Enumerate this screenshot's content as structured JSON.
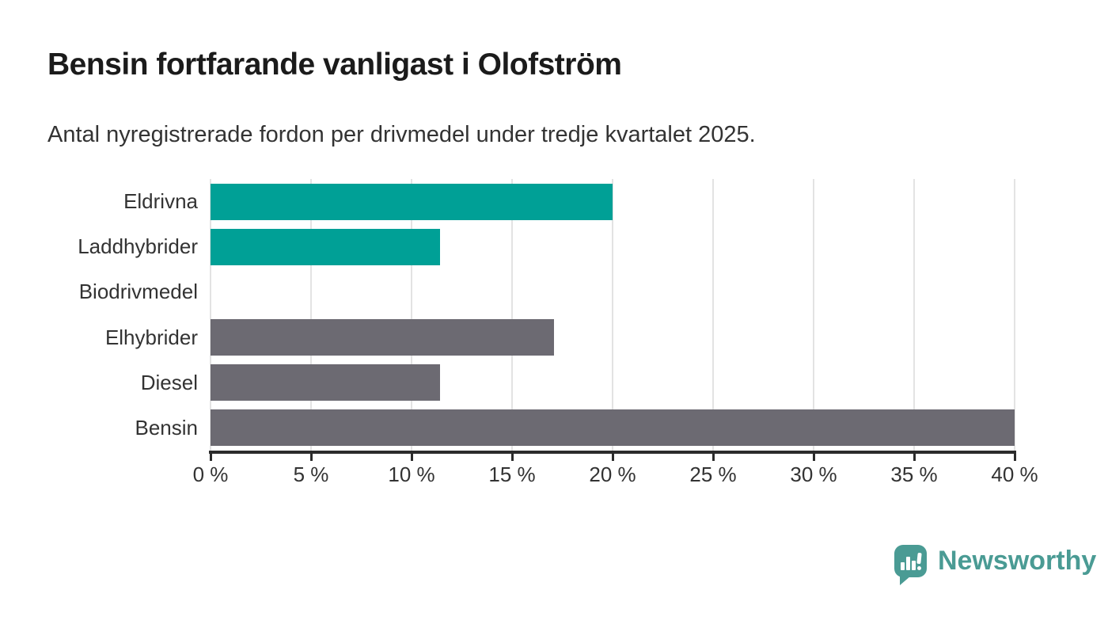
{
  "title": "Bensin fortfarande vanligast i Olofström",
  "subtitle": "Antal nyregistrerade fordon per drivmedel under tredje kvartalet 2025.",
  "brand": {
    "name": "Newsworthy",
    "color": "#4a9b94",
    "icon": "speech-bubble-bar-chart-icon"
  },
  "style": {
    "teal": "#00a096",
    "gray": "#6c6a72",
    "grid_color": "#e3e3e3",
    "axis_color": "#2b2b2b",
    "text_color": "#333333",
    "title_color": "#1b1b1b",
    "background": "#ffffff"
  },
  "chart_data": {
    "type": "bar",
    "orientation": "horizontal",
    "title": "Bensin fortfarande vanligast i Olofström",
    "subtitle": "Antal nyregistrerade fordon per drivmedel under tredje kvartalet 2025.",
    "categories": [
      "Eldrivna",
      "Laddhybrider",
      "Biodrivmedel",
      "Elhybrider",
      "Diesel",
      "Bensin"
    ],
    "values": [
      20,
      11.4,
      0,
      17.1,
      11.4,
      40
    ],
    "unit": "%",
    "bar_colors": [
      "#00a096",
      "#00a096",
      "#6c6a72",
      "#6c6a72",
      "#6c6a72",
      "#6c6a72"
    ],
    "xlim": [
      0,
      40
    ],
    "x_ticks": [
      {
        "value": 0,
        "label": "0 %"
      },
      {
        "value": 5,
        "label": "5 %"
      },
      {
        "value": 10,
        "label": "10 %"
      },
      {
        "value": 15,
        "label": "15 %"
      },
      {
        "value": 20,
        "label": "20 %"
      },
      {
        "value": 25,
        "label": "25 %"
      },
      {
        "value": 30,
        "label": "30 %"
      },
      {
        "value": 35,
        "label": "35 %"
      },
      {
        "value": 40,
        "label": "40 %"
      }
    ],
    "grid": "vertical",
    "legend": "none"
  }
}
